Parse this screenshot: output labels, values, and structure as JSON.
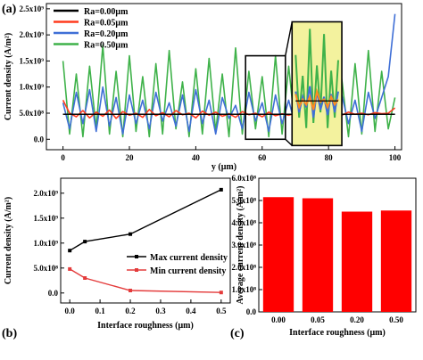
{
  "chart_data": [
    {
      "panel": "(a)",
      "type": "line",
      "xlabel": "y (μm)",
      "ylabel": "Current density (A/m²)",
      "xlim": [
        -5,
        102
      ],
      "ylim": [
        -0.2,
        2.6
      ],
      "x_ticks": [
        "0",
        "20",
        "40",
        "60",
        "80",
        "100"
      ],
      "y_ticks": [
        "0.0",
        "5.0x10⁸",
        "1.0x10⁹",
        "1.5x10⁹",
        "2.0x10⁹",
        "2.5x10⁹"
      ],
      "y_unit_multiplier": 1000000000,
      "legend_position": "top-left",
      "inset": "magnified view of 55–67 μm",
      "series": [
        {
          "name": "Ra=0.00μm",
          "color": "#000000",
          "x": [
            0,
            100
          ],
          "y": [
            0.48,
            0.48
          ]
        },
        {
          "name": "Ra=0.05μm",
          "color": "#ff3b1f",
          "x": [
            0,
            2,
            4,
            6,
            8,
            10,
            12,
            14,
            16,
            18,
            20,
            22,
            24,
            26,
            28,
            30,
            32,
            34,
            36,
            38,
            40,
            42,
            44,
            46,
            48,
            50,
            52,
            54,
            56,
            58,
            60,
            62,
            64,
            66,
            68,
            70,
            72,
            74,
            76,
            78,
            80,
            82,
            84,
            86,
            88,
            90,
            92,
            94,
            96,
            98,
            100
          ],
          "y": [
            0.75,
            0.5,
            0.43,
            0.55,
            0.41,
            0.52,
            0.44,
            0.56,
            0.4,
            0.53,
            0.46,
            0.5,
            0.42,
            0.57,
            0.45,
            0.51,
            0.43,
            0.55,
            0.47,
            0.5,
            0.41,
            0.54,
            0.46,
            0.52,
            0.44,
            0.49,
            0.42,
            0.53,
            0.47,
            0.5,
            0.43,
            0.52,
            0.45,
            0.49,
            0.46,
            0.5,
            0.44,
            0.53,
            0.47,
            0.51,
            0.45,
            0.49,
            0.46,
            0.52,
            0.48,
            0.5,
            0.47,
            0.51,
            0.49,
            0.5,
            0.6
          ]
        },
        {
          "name": "Ra=0.20μm",
          "color": "#3f6fd6",
          "x": [
            0,
            2,
            4,
            6,
            8,
            10,
            12,
            14,
            16,
            18,
            20,
            22,
            24,
            26,
            28,
            30,
            32,
            34,
            36,
            38,
            40,
            42,
            44,
            46,
            48,
            50,
            52,
            54,
            56,
            58,
            60,
            62,
            64,
            66,
            68,
            70,
            72,
            74,
            76,
            78,
            80,
            82,
            84,
            86,
            88,
            90,
            92,
            94,
            96,
            98,
            100
          ],
          "y": [
            0.7,
            0.2,
            0.9,
            0.3,
            0.95,
            0.15,
            1.0,
            0.25,
            0.8,
            0.1,
            0.85,
            0.3,
            0.75,
            0.2,
            0.9,
            0.35,
            0.7,
            0.25,
            0.85,
            0.15,
            0.95,
            0.3,
            0.75,
            0.1,
            0.8,
            0.4,
            0.65,
            0.2,
            0.9,
            0.35,
            0.7,
            0.15,
            0.85,
            0.3,
            0.75,
            0.25,
            0.9,
            0.1,
            0.8,
            0.35,
            0.7,
            0.2,
            0.85,
            0.3,
            0.75,
            0.15,
            0.9,
            0.4,
            0.8,
            1.2,
            2.4
          ]
        },
        {
          "name": "Ra=0.50μm",
          "color": "#3fb24a",
          "x": [
            0,
            2,
            4,
            6,
            8,
            10,
            12,
            14,
            16,
            18,
            20,
            22,
            24,
            26,
            28,
            30,
            32,
            34,
            36,
            38,
            40,
            42,
            44,
            46,
            48,
            50,
            52,
            54,
            56,
            58,
            60,
            62,
            64,
            66,
            68,
            70,
            72,
            74,
            76,
            78,
            80,
            82,
            84,
            86,
            88,
            90,
            92,
            94,
            96,
            98,
            100
          ],
          "y": [
            1.5,
            0.1,
            1.25,
            0.05,
            1.4,
            0.2,
            1.8,
            0.1,
            1.3,
            0.05,
            1.6,
            0.15,
            1.2,
            0.05,
            1.45,
            0.1,
            1.7,
            0.2,
            1.1,
            0.05,
            1.35,
            0.1,
            1.55,
            0.15,
            1.25,
            0.05,
            1.75,
            0.1,
            1.3,
            0.2,
            1.2,
            0.05,
            1.6,
            0.1,
            1.4,
            0.15,
            1.65,
            0.05,
            1.25,
            0.1,
            1.5,
            0.2,
            1.15,
            0.05,
            1.45,
            0.1,
            1.7,
            0.15,
            1.3,
            0.2,
            0.8
          ]
        }
      ]
    },
    {
      "panel": "(b)",
      "type": "line",
      "xlabel": "Interface roughness (μm)",
      "ylabel": "Current density (A/m²)",
      "xlim": [
        -0.03,
        0.53
      ],
      "ylim": [
        -0.2,
        2.3
      ],
      "x_ticks": [
        "0.0",
        "0.1",
        "0.2",
        "0.3",
        "0.4",
        "0.5"
      ],
      "y_ticks": [
        "0.0",
        "5.0x10⁸",
        "1.0x10⁹",
        "1.5x10⁹",
        "2.0x10⁹"
      ],
      "y_unit_multiplier": 1000000000,
      "legend_position": "center-right",
      "series": [
        {
          "name": "Max current density",
          "color": "#000000",
          "x": [
            0,
            0.05,
            0.2,
            0.5
          ],
          "y": [
            0.85,
            1.03,
            1.18,
            2.07
          ]
        },
        {
          "name": "Min current density",
          "color": "#e43b3b",
          "x": [
            0,
            0.05,
            0.2,
            0.5
          ],
          "y": [
            0.48,
            0.3,
            0.05,
            0.01
          ]
        }
      ]
    },
    {
      "panel": "(c)",
      "type": "bar",
      "xlabel": "Interface roughness (μm)",
      "ylabel": "Average current density (A/m²)",
      "categories": [
        "0.00",
        "0.05",
        "0.20",
        "0.50"
      ],
      "values": [
        5.15,
        5.1,
        4.5,
        4.55
      ],
      "y_unit_multiplier": 100000000,
      "ylim": [
        0,
        6
      ],
      "y_ticks": [
        "0.0",
        "1.0x10⁸",
        "2.0x10⁸",
        "3.0x10⁸",
        "4.0x10⁸",
        "5.0x10⁸",
        "6.0x10⁸"
      ],
      "bar_color": "#ff0000"
    }
  ]
}
